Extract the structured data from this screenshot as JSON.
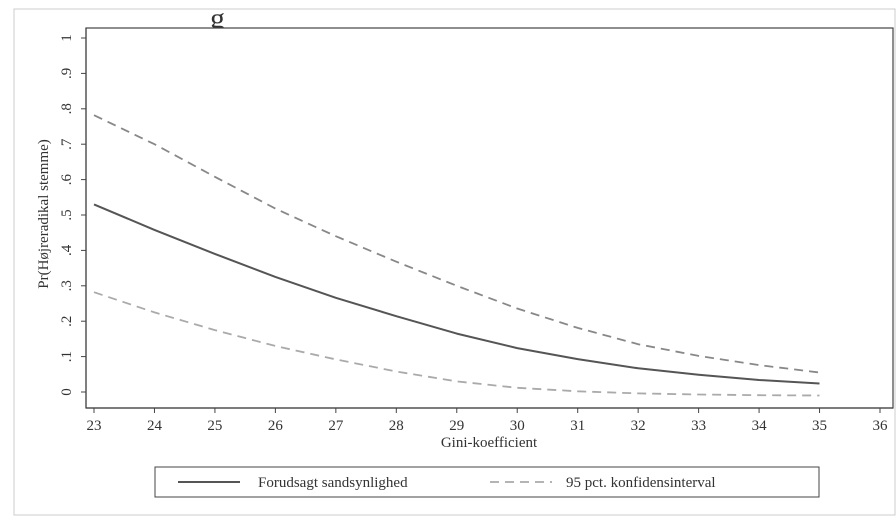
{
  "chart_data": {
    "type": "line",
    "title": "g",
    "xlabel": "Gini-koefficient",
    "ylabel": "Pr(Højreradikal stemme)",
    "xlim": [
      23,
      36
    ],
    "ylim": [
      0,
      1
    ],
    "x_ticks": [
      "23",
      "24",
      "25",
      "26",
      "27",
      "28",
      "29",
      "30",
      "31",
      "32",
      "33",
      "34",
      "35",
      "36"
    ],
    "y_ticks": [
      "0",
      ".1",
      ".2",
      ".3",
      ".4",
      ".5",
      ".6",
      ".7",
      ".8",
      ".9",
      "1"
    ],
    "grid": false,
    "legend_position": "bottom",
    "series": [
      {
        "name": "Forudsagt sandsynlighed",
        "style": "solid",
        "color": "#555555",
        "x": [
          23,
          24,
          25,
          26,
          27,
          28,
          29,
          30,
          31,
          32,
          33,
          34,
          35
        ],
        "values": [
          0.53,
          0.458,
          0.39,
          0.325,
          0.266,
          0.214,
          0.165,
          0.124,
          0.093,
          0.067,
          0.049,
          0.034,
          0.024
        ]
      },
      {
        "name": "95 pct. konfidensinterval",
        "style": "dashed",
        "color": "#888888",
        "x": [
          23,
          24,
          25,
          26,
          27,
          28,
          29,
          30,
          31,
          32,
          33,
          34,
          35
        ],
        "values": [
          0.782,
          0.7,
          0.608,
          0.518,
          0.44,
          0.368,
          0.3,
          0.236,
          0.181,
          0.135,
          0.102,
          0.076,
          0.055
        ]
      },
      {
        "style": "dashed",
        "color": "#aaaaaa",
        "x": [
          23,
          24,
          25,
          26,
          27,
          28,
          29,
          30,
          31,
          32,
          33,
          34,
          35
        ],
        "values": [
          0.282,
          0.225,
          0.175,
          0.13,
          0.092,
          0.058,
          0.03,
          0.012,
          0.002,
          -0.004,
          -0.007,
          -0.009,
          -0.01
        ]
      }
    ]
  }
}
